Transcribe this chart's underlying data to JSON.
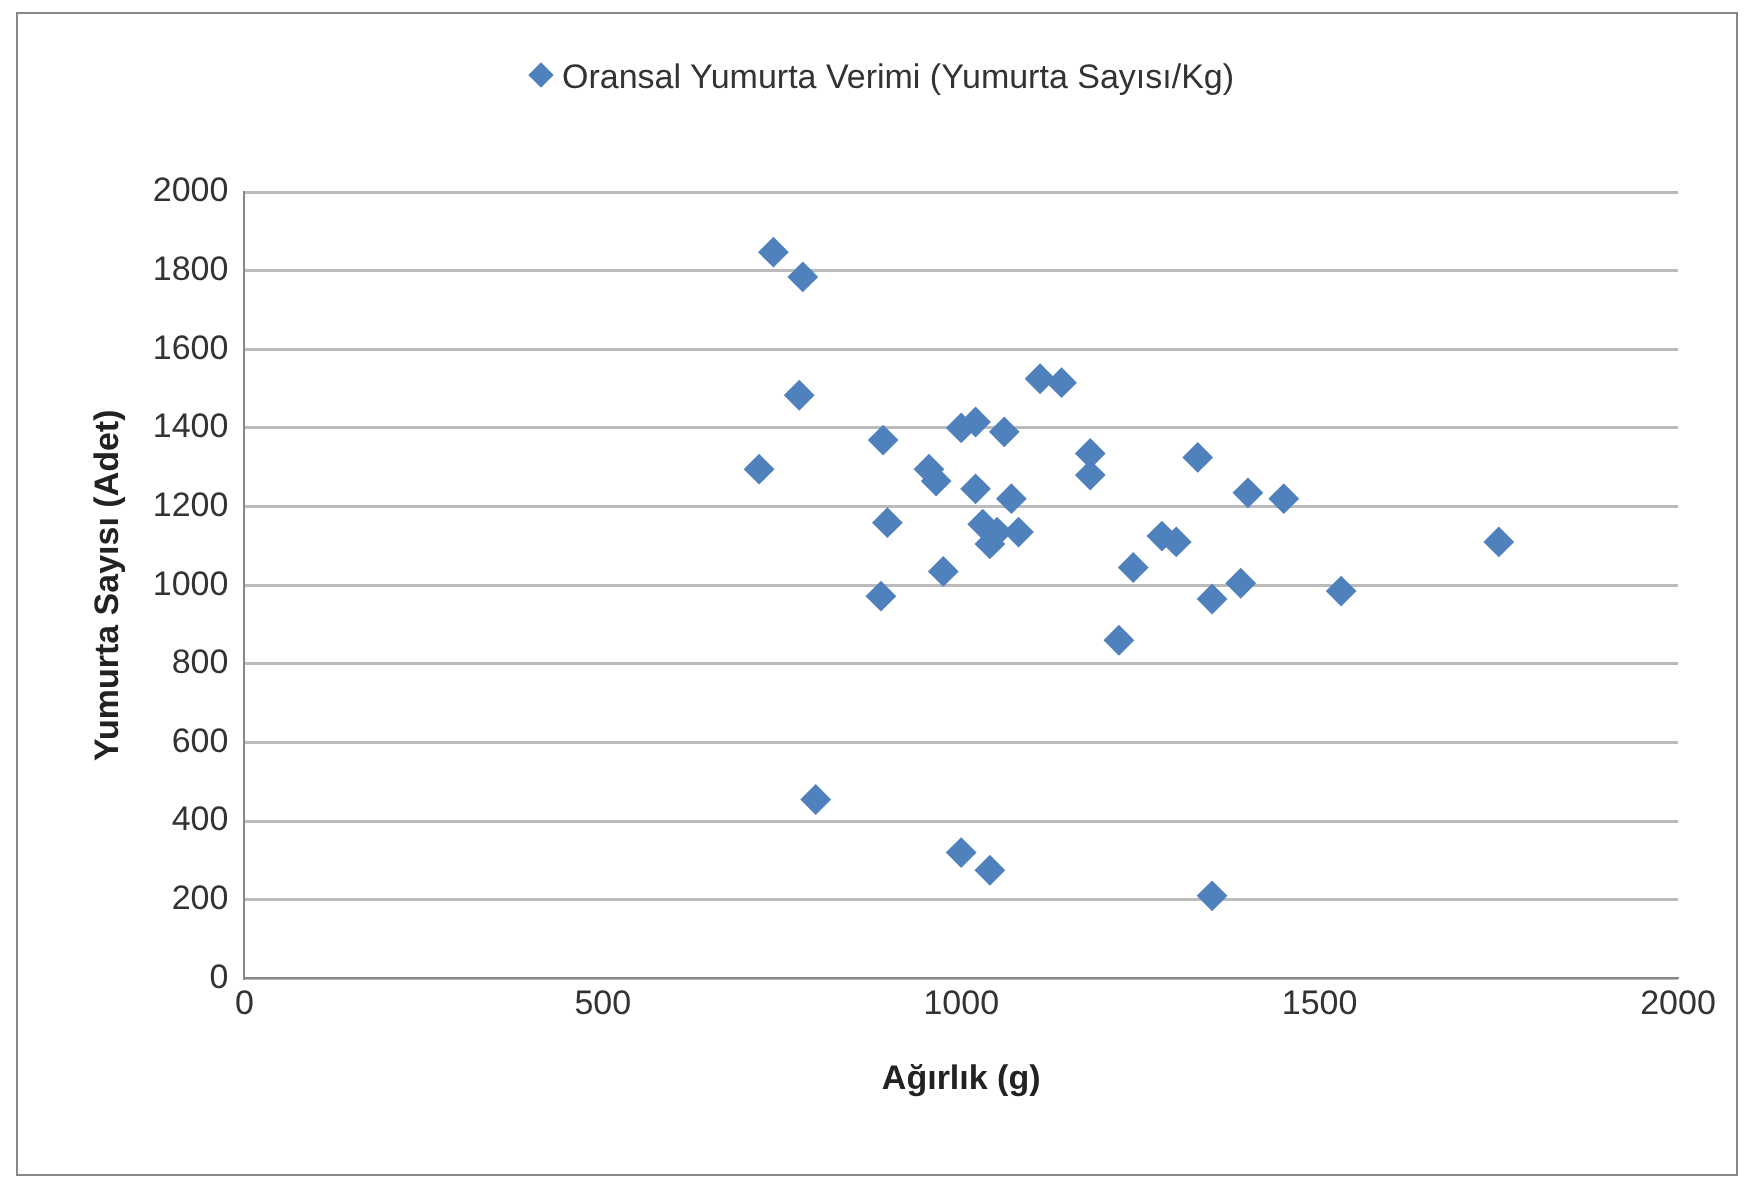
{
  "chart_data": {
    "type": "scatter",
    "xlabel": "Ağırlık (g)",
    "ylabel": "Yumurta Sayısı (Adet)",
    "xlim": [
      0,
      2000
    ],
    "xticks": [
      0,
      500,
      1000,
      1500,
      2000
    ],
    "ylim": [
      0,
      2000
    ],
    "yticks": [
      0,
      200,
      400,
      600,
      800,
      1000,
      1200,
      1400,
      1600,
      1800,
      2000
    ],
    "grid": "y",
    "legend": "top",
    "marker": "diamond",
    "series": [
      {
        "name": "Oransal Yumurta Verimi (Yumurta Sayısı/Kg)",
        "color": "#4f81bd",
        "x": [
          718,
          738,
          779,
          774,
          797,
          891,
          897,
          888,
          955,
          965,
          975,
          1000,
          1020,
          1020,
          1030,
          1040,
          1050,
          1060,
          1070,
          1080,
          1000,
          1040,
          1110,
          1140,
          1180,
          1180,
          1220,
          1240,
          1280,
          1300,
          1330,
          1350,
          1350,
          1390,
          1400,
          1450,
          1530,
          1750
        ],
        "values": [
          1295,
          1847,
          1784,
          1483,
          455,
          1369,
          1159,
          972,
          1295,
          1265,
          1035,
          1400,
          1415,
          1245,
          1155,
          1105,
          1135,
          1390,
          1220,
          1135,
          320,
          275,
          1525,
          1515,
          1335,
          1280,
          860,
          1045,
          1125,
          1110,
          1325,
          965,
          210,
          1005,
          1235,
          1220,
          985,
          1110
        ]
      }
    ]
  }
}
